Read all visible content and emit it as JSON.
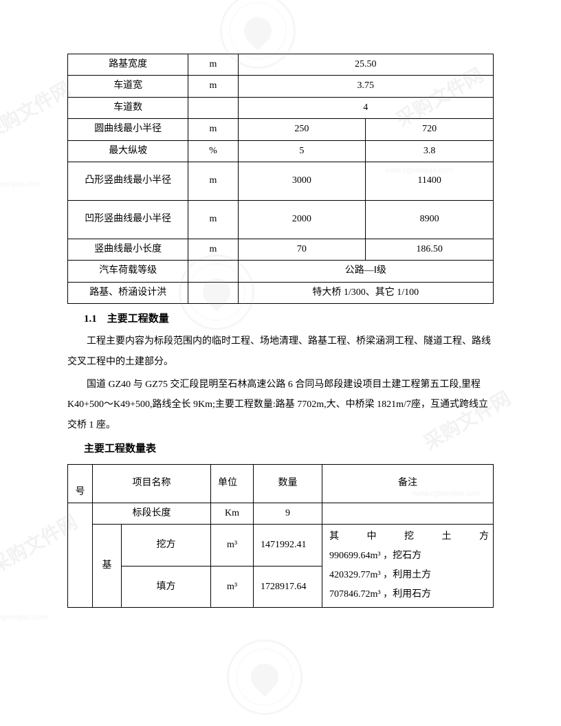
{
  "table1": {
    "rows": [
      {
        "name": "路基宽度",
        "unit": "m",
        "v1": "25.50",
        "v2": null,
        "span": true
      },
      {
        "name": "车道宽",
        "unit": "m",
        "v1": "3.75",
        "v2": null,
        "span": true
      },
      {
        "name": "车道数",
        "unit": "",
        "v1": "4",
        "v2": null,
        "span": true
      },
      {
        "name": "圆曲线最小半径",
        "unit": "m",
        "v1": "250",
        "v2": "720",
        "span": false
      },
      {
        "name": "最大纵坡",
        "unit": "%",
        "v1": "5",
        "v2": "3.8",
        "span": false
      },
      {
        "name": "凸形竖曲线最小半径",
        "unit": "m",
        "v1": "3000",
        "v2": "11400",
        "span": false,
        "tall": true
      },
      {
        "name": "凹形竖曲线最小半径",
        "unit": "m",
        "v1": "2000",
        "v2": "8900",
        "span": false,
        "tall": true
      },
      {
        "name": "竖曲线最小长度",
        "unit": "m",
        "v1": "70",
        "v2": "186.50",
        "span": false
      },
      {
        "name": "汽车荷载等级",
        "unit": "",
        "v1": "公路—Ⅰ级",
        "v2": null,
        "span": true
      },
      {
        "name": "路基、桥涵设计洪",
        "unit": "",
        "v1": "特大桥 1/300、其它 1/100",
        "v2": null,
        "span": true
      }
    ]
  },
  "heading1": {
    "num": "1.1",
    "text": "主要工程数量"
  },
  "para1": "工程主要内容为标段范围内的临时工程、场地清理、路基工程、桥梁涵洞工程、隧道工程、路线交叉工程中的土建部分。",
  "para2": "国道 GZ40 与 GZ75 交汇段昆明至石林高速公路 6 合同马郎段建设项目土建工程第五工段,里程 K40+500～K49+500,路线全长 9Km;主要工程数量:路基 7702m,大、中桥梁 1821m/7座，互通式跨线立交桥 1 座。",
  "heading2": "主要工程数量表",
  "table2": {
    "header": {
      "c0": "号",
      "c1": "项目名称",
      "c2": "单位",
      "c3": "数量",
      "c4": "备注"
    },
    "rows": [
      {
        "cat": "",
        "name": "标段长度",
        "unit": "Km",
        "qty": "9",
        "note": ""
      },
      {
        "cat": "基",
        "name": "挖方",
        "unit": "m³",
        "qty": "1471992.41",
        "note_l1": "其中挖土方",
        "note_l2": "990699.64m³ ，挖石方"
      },
      {
        "cat": "",
        "name": "填方",
        "unit": "m³",
        "qty": "1728917.64",
        "note_l1": "420329.77m³ ，利用土方",
        "note_l2": "707846.72m³ ，利用石方"
      }
    ]
  },
  "colors": {
    "text": "#000000",
    "border": "#000000",
    "bg": "#ffffff",
    "watermark": "#888888"
  },
  "font": {
    "family": "SimSun",
    "size_body": 14,
    "size_heading": 15
  }
}
